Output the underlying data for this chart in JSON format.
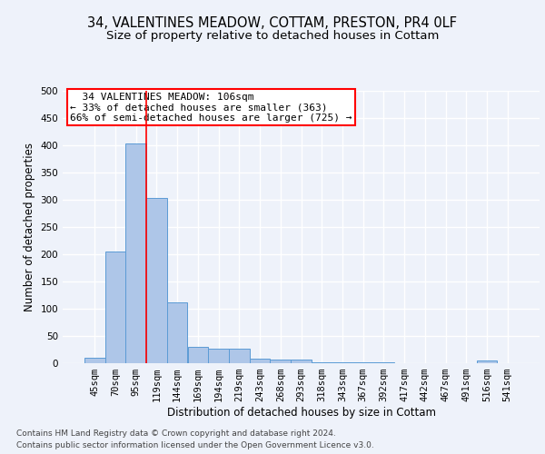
{
  "title_line1": "34, VALENTINES MEADOW, COTTAM, PRESTON, PR4 0LF",
  "title_line2": "Size of property relative to detached houses in Cottam",
  "xlabel": "Distribution of detached houses by size in Cottam",
  "ylabel": "Number of detached properties",
  "bar_labels": [
    "45sqm",
    "70sqm",
    "95sqm",
    "119sqm",
    "144sqm",
    "169sqm",
    "194sqm",
    "219sqm",
    "243sqm",
    "268sqm",
    "293sqm",
    "318sqm",
    "343sqm",
    "367sqm",
    "392sqm",
    "417sqm",
    "442sqm",
    "467sqm",
    "491sqm",
    "516sqm",
    "541sqm"
  ],
  "bar_values": [
    10,
    205,
    403,
    303,
    112,
    30,
    27,
    26,
    8,
    7,
    6,
    2,
    2,
    2,
    2,
    0,
    0,
    0,
    0,
    5,
    0
  ],
  "bar_color": "#aec6e8",
  "bar_edge_color": "#5b9bd5",
  "ylim": [
    0,
    500
  ],
  "yticks": [
    0,
    50,
    100,
    150,
    200,
    250,
    300,
    350,
    400,
    450,
    500
  ],
  "property_line_x": 2.5,
  "annotation_line1": "  34 VALENTINES MEADOW: 106sqm",
  "annotation_line2": "← 33% of detached houses are smaller (363)",
  "annotation_line3": "66% of semi-detached houses are larger (725) →",
  "footer_line1": "Contains HM Land Registry data © Crown copyright and database right 2024.",
  "footer_line2": "Contains public sector information licensed under the Open Government Licence v3.0.",
  "background_color": "#eef2fa",
  "grid_color": "#ffffff",
  "title_fontsize": 10.5,
  "subtitle_fontsize": 9.5,
  "axis_label_fontsize": 8.5,
  "tick_fontsize": 7.5,
  "annotation_fontsize": 8,
  "footer_fontsize": 6.5
}
